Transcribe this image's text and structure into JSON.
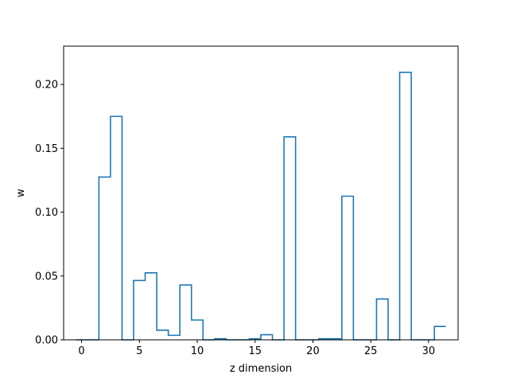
{
  "chart_data": {
    "type": "step",
    "title": "",
    "xlabel": "z dimension",
    "ylabel": "w",
    "xlim": [
      -1.55,
      32.55
    ],
    "ylim": [
      0,
      0.23
    ],
    "x_ticks": [
      0,
      5,
      10,
      15,
      20,
      25,
      30
    ],
    "y_ticks": [
      0.0,
      0.05,
      0.1,
      0.15,
      0.2
    ],
    "y_tick_labels": [
      "0.00",
      "0.05",
      "0.10",
      "0.15",
      "0.20"
    ],
    "grid": false,
    "line_color": "#1f77b4",
    "x": [
      0,
      1,
      2,
      3,
      4,
      5,
      6,
      7,
      8,
      9,
      10,
      11,
      12,
      13,
      14,
      15,
      16,
      17,
      18,
      19,
      20,
      21,
      22,
      23,
      24,
      25,
      26,
      27,
      28,
      29,
      30,
      31
    ],
    "values": [
      0.0,
      0.0,
      0.1275,
      0.175,
      0.0,
      0.0465,
      0.0525,
      0.0075,
      0.0035,
      0.043,
      0.0155,
      0.0,
      0.0008,
      0.0,
      0.0,
      0.0008,
      0.004,
      0.0,
      0.159,
      0.0,
      0.0,
      0.0008,
      0.0008,
      0.1125,
      0.0,
      0.0,
      0.032,
      0.0,
      0.2095,
      0.0,
      0.0,
      0.0105
    ]
  }
}
